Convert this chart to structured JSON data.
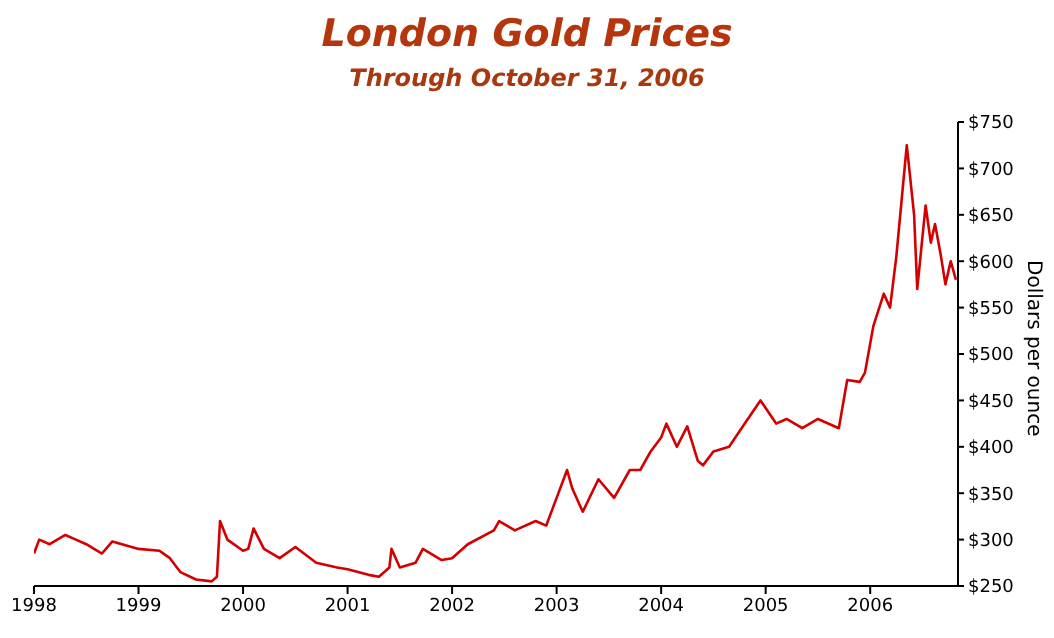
{
  "chart_data": {
    "type": "line",
    "title": "London Gold Prices",
    "subtitle": "Through October 31, 2006",
    "ylabel": "Dollars per ounce",
    "legend": false,
    "grid": false,
    "marker": "none",
    "xlim": [
      1998,
      2006.84
    ],
    "xticks": [
      1998,
      1999,
      2000,
      2001,
      2002,
      2003,
      2004,
      2005,
      2006
    ],
    "ylim": [
      250,
      750
    ],
    "yticks": [
      {
        "value": 250,
        "label": "$250"
      },
      {
        "value": 300,
        "label": "$300"
      },
      {
        "value": 350,
        "label": "$350"
      },
      {
        "value": 400,
        "label": "$400"
      },
      {
        "value": 450,
        "label": "$450"
      },
      {
        "value": 500,
        "label": "$500"
      },
      {
        "value": 550,
        "label": "$550"
      },
      {
        "value": 600,
        "label": "$600"
      },
      {
        "value": 650,
        "label": "$650"
      },
      {
        "value": 700,
        "label": "$700"
      },
      {
        "value": 750,
        "label": "$750"
      }
    ],
    "x": [
      1998.0,
      1998.05,
      1998.15,
      1998.3,
      1998.4,
      1998.5,
      1998.65,
      1998.75,
      1999.0,
      1999.2,
      1999.3,
      1999.4,
      1999.55,
      1999.7,
      1999.75,
      1999.78,
      1999.85,
      2000.0,
      2000.05,
      2000.1,
      2000.2,
      2000.35,
      2000.45,
      2000.5,
      2000.7,
      2000.9,
      2001.0,
      2001.2,
      2001.3,
      2001.4,
      2001.42,
      2001.5,
      2001.65,
      2001.72,
      2001.9,
      2002.0,
      2002.15,
      2002.4,
      2002.45,
      2002.6,
      2002.8,
      2002.9,
      2003.0,
      2003.1,
      2003.15,
      2003.25,
      2003.4,
      2003.55,
      2003.7,
      2003.8,
      2003.9,
      2004.0,
      2004.05,
      2004.15,
      2004.25,
      2004.35,
      2004.4,
      2004.5,
      2004.65,
      2004.8,
      2004.95,
      2005.1,
      2005.2,
      2005.35,
      2005.5,
      2005.7,
      2005.78,
      2005.9,
      2005.95,
      2006.03,
      2006.13,
      2006.19,
      2006.25,
      2006.35,
      2006.42,
      2006.45,
      2006.53,
      2006.58,
      2006.62,
      2006.67,
      2006.72,
      2006.77,
      2006.82
    ],
    "series": [
      {
        "color": "#d40000",
        "values": [
          285,
          300,
          295,
          305,
          300,
          295,
          285,
          298,
          290,
          288,
          280,
          265,
          257,
          255,
          260,
          320,
          300,
          288,
          290,
          312,
          290,
          280,
          288,
          292,
          275,
          270,
          268,
          262,
          260,
          270,
          290,
          270,
          275,
          290,
          278,
          280,
          295,
          310,
          320,
          310,
          320,
          315,
          345,
          375,
          355,
          330,
          365,
          345,
          375,
          375,
          395,
          410,
          425,
          400,
          422,
          385,
          380,
          395,
          400,
          425,
          450,
          425,
          430,
          420,
          430,
          420,
          472,
          470,
          480,
          530,
          565,
          550,
          605,
          725,
          650,
          570,
          660,
          620,
          640,
          610,
          575,
          600,
          580
        ]
      }
    ]
  }
}
